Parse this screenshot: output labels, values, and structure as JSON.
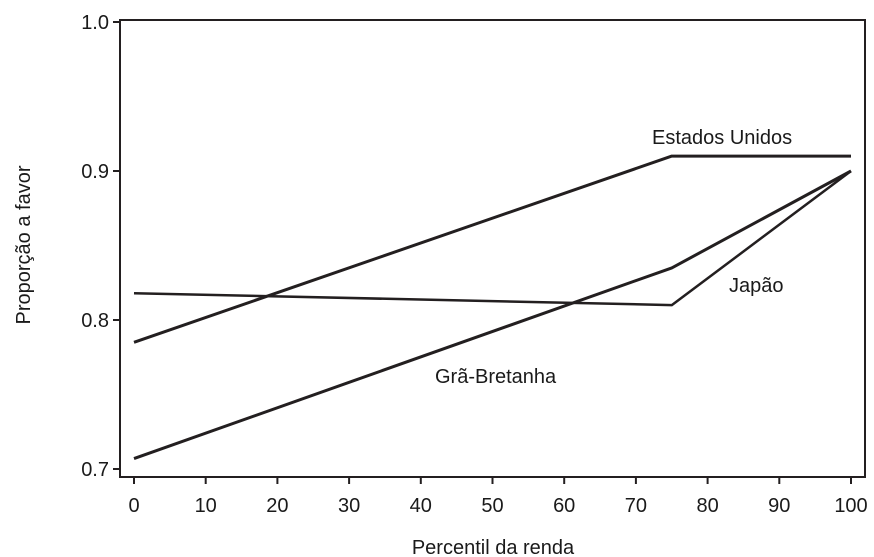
{
  "chart_data": {
    "type": "line",
    "xlabel": "Percentil da renda",
    "ylabel": "Proporção a favor",
    "xlim": [
      0,
      100
    ],
    "ylim": [
      0.7,
      1.0
    ],
    "xticks": [
      0,
      10,
      20,
      30,
      40,
      50,
      60,
      70,
      80,
      90,
      100
    ],
    "xtick_labels": [
      "0",
      "10",
      "20",
      "30",
      "40",
      "50",
      "60",
      "70",
      "80",
      "90",
      "100"
    ],
    "yticks": [
      0.7,
      0.8,
      0.9,
      1.0
    ],
    "ytick_labels": [
      "0.7",
      "0.8",
      "0.9",
      "1.0"
    ],
    "grid": false,
    "series": [
      {
        "name": "Estados Unidos",
        "color": "#231f20",
        "x": [
          0,
          75,
          100
        ],
        "y": [
          0.785,
          0.91,
          0.91
        ]
      },
      {
        "name": "Japão",
        "color": "#231f20",
        "x": [
          0,
          75,
          100
        ],
        "y": [
          0.818,
          0.81,
          0.9
        ]
      },
      {
        "name": "Grã-Bretanha",
        "color": "#231f20",
        "x": [
          0,
          75,
          100
        ],
        "y": [
          0.707,
          0.835,
          0.9
        ]
      }
    ]
  }
}
